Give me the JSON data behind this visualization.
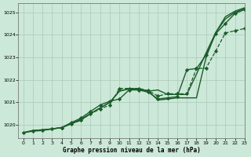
{
  "background_color": "#cce8d8",
  "grid_color": "#aac8b8",
  "line_color": "#1a5c2a",
  "xlabel": "Graphe pression niveau de la mer (hPa)",
  "xlim": [
    -0.5,
    23
  ],
  "ylim": [
    1019.4,
    1025.4
  ],
  "yticks": [
    1020,
    1021,
    1022,
    1023,
    1024,
    1025
  ],
  "xticks": [
    0,
    1,
    2,
    3,
    4,
    5,
    6,
    7,
    8,
    9,
    10,
    11,
    12,
    13,
    14,
    15,
    16,
    17,
    18,
    19,
    20,
    21,
    22,
    23
  ],
  "series": [
    {
      "x": [
        0,
        1,
        2,
        3,
        4,
        5,
        6,
        7,
        8,
        9,
        10,
        11,
        12,
        13,
        14,
        15,
        16,
        17,
        18,
        19,
        20,
        21,
        22,
        23
      ],
      "y": [
        1019.65,
        1019.75,
        1019.78,
        1019.82,
        1019.88,
        1020.05,
        1020.22,
        1020.5,
        1020.75,
        1021.0,
        1021.5,
        1021.6,
        1021.6,
        1021.5,
        1021.1,
        1021.15,
        1021.2,
        1021.2,
        1021.2,
        1023.0,
        1024.1,
        1024.8,
        1025.05,
        1025.2
      ],
      "marker": "",
      "markersize": 0,
      "linewidth": 1.0,
      "linestyle": "-"
    },
    {
      "x": [
        0,
        1,
        2,
        3,
        4,
        5,
        6,
        7,
        8,
        9,
        10,
        11,
        12,
        13,
        14,
        15,
        16,
        17,
        18,
        19,
        20,
        21,
        22,
        23
      ],
      "y": [
        1019.65,
        1019.75,
        1019.78,
        1019.82,
        1019.88,
        1020.05,
        1020.25,
        1020.5,
        1020.75,
        1021.0,
        1021.5,
        1021.6,
        1021.6,
        1021.5,
        1021.55,
        1021.35,
        1021.35,
        1021.35,
        1022.25,
        1023.2,
        1024.1,
        1024.7,
        1025.0,
        1025.15
      ],
      "marker": "",
      "markersize": 0,
      "linewidth": 1.0,
      "linestyle": "-"
    },
    {
      "x": [
        0,
        1,
        2,
        3,
        4,
        5,
        6,
        7,
        8,
        9,
        10,
        11,
        12,
        13,
        14,
        15,
        16,
        17,
        18,
        19,
        20,
        21,
        22,
        23
      ],
      "y": [
        1019.65,
        1019.72,
        1019.75,
        1019.82,
        1019.88,
        1020.1,
        1020.3,
        1020.6,
        1020.88,
        1021.05,
        1021.15,
        1021.55,
        1021.55,
        1021.45,
        1021.15,
        1021.2,
        1021.25,
        1022.45,
        1022.5,
        1023.1,
        1024.05,
        1024.5,
        1024.95,
        1025.12
      ],
      "marker": "D",
      "markersize": 2.2,
      "linewidth": 1.0,
      "linestyle": "-"
    },
    {
      "x": [
        4,
        5,
        6,
        7,
        8,
        9,
        10,
        11,
        12,
        13,
        14,
        15,
        16,
        17,
        18,
        19,
        20,
        21,
        22,
        23
      ],
      "y": [
        1019.88,
        1020.05,
        1020.2,
        1020.5,
        1020.7,
        1020.88,
        1021.62,
        1021.62,
        1021.62,
        1021.52,
        1021.28,
        1021.38,
        1021.38,
        1021.38,
        1022.5,
        1022.52,
        1023.28,
        1024.08,
        1024.18,
        1024.28
      ],
      "marker": "D",
      "markersize": 2.2,
      "linewidth": 0.9,
      "linestyle": "--"
    }
  ]
}
